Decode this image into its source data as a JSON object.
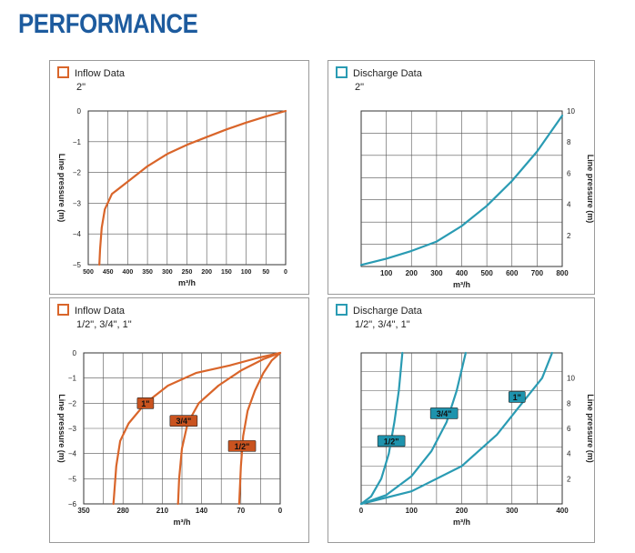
{
  "page": {
    "title": "PERFORMANCE"
  },
  "colors": {
    "inflow": "#d9652a",
    "discharge": "#2a9bb3",
    "label_inflow": "#c9531f",
    "label_discharge": "#1e93ad",
    "grid": "#333333",
    "title": "#1d5b9e"
  },
  "chart_data": [
    {
      "id": "inflow2",
      "type": "line",
      "legend": "Inflow Data",
      "subtitle": "2\"",
      "xlabel": "m³/h",
      "ylabel": "Line pressure  (m)",
      "xlim": [
        500,
        0
      ],
      "ylim": [
        -5,
        0
      ],
      "x_ticks": [
        "500",
        "450",
        "400",
        "350",
        "300",
        "250",
        "200",
        "150",
        "100",
        "50",
        "0"
      ],
      "y_ticks": [
        "0",
        "−1",
        "−2",
        "−3",
        "−4",
        "−5"
      ],
      "grid": true,
      "series": [
        {
          "label": "",
          "points": [
            [
              0,
              0
            ],
            [
              50,
              -0.18
            ],
            [
              100,
              -0.38
            ],
            [
              150,
              -0.6
            ],
            [
              200,
              -0.85
            ],
            [
              250,
              -1.1
            ],
            [
              300,
              -1.4
            ],
            [
              350,
              -1.8
            ],
            [
              400,
              -2.3
            ],
            [
              440,
              -2.7
            ],
            [
              458,
              -3.2
            ],
            [
              466,
              -3.8
            ],
            [
              470,
              -4.5
            ],
            [
              472,
              -5
            ]
          ]
        }
      ]
    },
    {
      "id": "discharge2",
      "type": "line",
      "legend": "Discharge Data",
      "subtitle": "2\"",
      "xlabel": "m³/h",
      "ylabel": "Line pressure  (m)",
      "xlim": [
        0,
        800
      ],
      "ylim": [
        0,
        10
      ],
      "x_ticks": [
        "100",
        "200",
        "300",
        "400",
        "500",
        "600",
        "700",
        "800"
      ],
      "y_ticks": [
        "2",
        "4",
        "6",
        "8",
        "10"
      ],
      "grid": true,
      "series": [
        {
          "label": "",
          "points": [
            [
              0,
              0.1
            ],
            [
              100,
              0.5
            ],
            [
              200,
              1.0
            ],
            [
              300,
              1.6
            ],
            [
              400,
              2.6
            ],
            [
              500,
              3.9
            ],
            [
              600,
              5.5
            ],
            [
              700,
              7.4
            ],
            [
              800,
              9.7
            ]
          ]
        }
      ]
    },
    {
      "id": "inflowSmall",
      "type": "line",
      "legend": "Inflow Data",
      "subtitle": "1/2\", 3/4\", 1\"",
      "xlabel": "m³/h",
      "ylabel": "Line pressure  (m)",
      "xlim": [
        350,
        0
      ],
      "ylim": [
        -6,
        0
      ],
      "x_ticks": [
        "350",
        "280",
        "210",
        "140",
        "70",
        "0"
      ],
      "y_ticks": [
        "0",
        "−1",
        "−2",
        "−3",
        "−4",
        "−5",
        "−6"
      ],
      "grid": true,
      "series": [
        {
          "label": "1\"",
          "points": [
            [
              0,
              0
            ],
            [
              40,
              -0.2
            ],
            [
              90,
              -0.5
            ],
            [
              150,
              -0.8
            ],
            [
              200,
              -1.3
            ],
            [
              240,
              -2.0
            ],
            [
              270,
              -2.8
            ],
            [
              285,
              -3.5
            ],
            [
              292,
              -4.5
            ],
            [
              297,
              -6
            ]
          ]
        },
        {
          "label": "3/4\"",
          "points": [
            [
              0,
              0
            ],
            [
              30,
              -0.25
            ],
            [
              70,
              -0.7
            ],
            [
              110,
              -1.3
            ],
            [
              145,
              -2.0
            ],
            [
              165,
              -2.8
            ],
            [
              175,
              -3.8
            ],
            [
              180,
              -5
            ],
            [
              182,
              -6
            ]
          ]
        },
        {
          "label": "1/2\"",
          "points": [
            [
              0,
              0
            ],
            [
              15,
              -0.3
            ],
            [
              30,
              -0.8
            ],
            [
              45,
              -1.5
            ],
            [
              58,
              -2.3
            ],
            [
              66,
              -3.3
            ],
            [
              70,
              -4.5
            ],
            [
              73,
              -6
            ]
          ]
        }
      ],
      "annotations": [
        "1\"",
        "3/4\"",
        "1/2\""
      ]
    },
    {
      "id": "dischargeSmall",
      "type": "line",
      "legend": "Discharge Data",
      "subtitle": "1/2\", 3/4\", 1\"",
      "xlabel": "m³/h",
      "ylabel": "Line pressure  (m)",
      "xlim": [
        0,
        400
      ],
      "ylim": [
        0,
        12
      ],
      "x_ticks": [
        "0",
        "100",
        "200",
        "300",
        "400"
      ],
      "y_ticks": [
        "2",
        "4",
        "6",
        "8",
        "10"
      ],
      "grid": true,
      "series": [
        {
          "label": "1/2\"",
          "points": [
            [
              0,
              0
            ],
            [
              20,
              0.6
            ],
            [
              40,
              2.0
            ],
            [
              55,
              4.0
            ],
            [
              66,
              6.5
            ],
            [
              75,
              9.0
            ],
            [
              82,
              12
            ]
          ]
        },
        {
          "label": "3/4\"",
          "points": [
            [
              0,
              0
            ],
            [
              50,
              0.7
            ],
            [
              100,
              2.2
            ],
            [
              140,
              4.2
            ],
            [
              170,
              6.5
            ],
            [
              190,
              9.0
            ],
            [
              208,
              12
            ]
          ]
        },
        {
          "label": "1\"",
          "points": [
            [
              0,
              0
            ],
            [
              100,
              1.0
            ],
            [
              200,
              3.0
            ],
            [
              270,
              5.5
            ],
            [
              320,
              8.0
            ],
            [
              360,
              10.0
            ],
            [
              380,
              12
            ]
          ]
        }
      ],
      "annotations": [
        "1/2\"",
        "3/4\"",
        "1\""
      ]
    }
  ]
}
